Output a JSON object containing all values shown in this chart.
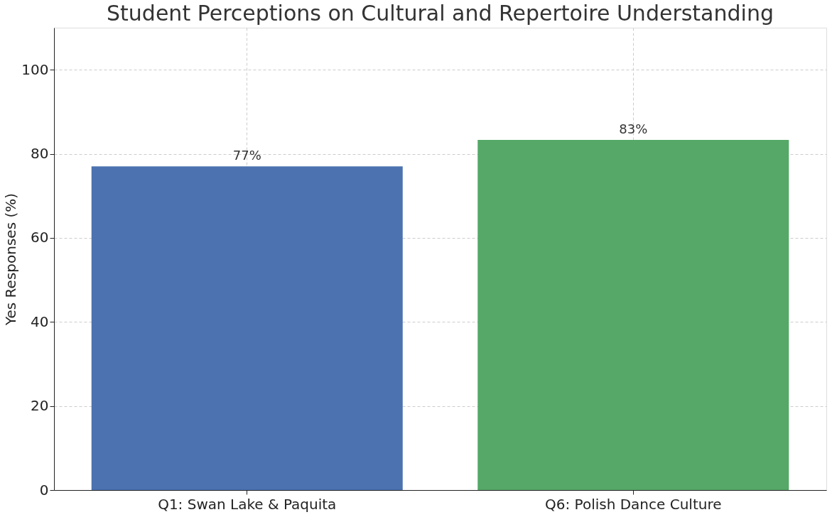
{
  "chart_data": {
    "type": "bar",
    "title": "Student Perceptions on Cultural and Repertoire Understanding",
    "ylabel": "Yes Responses (%)",
    "categories": [
      "Q1: Swan Lake & Paquita",
      "Q6: Polish Dance Culture"
    ],
    "values": [
      77,
      83.3
    ],
    "colors": [
      "#4c72b0",
      "#55a868"
    ],
    "value_labels": [
      "77%",
      "83%"
    ],
    "ylim": [
      0,
      110
    ],
    "yticks": [
      0,
      20,
      40,
      60,
      80,
      100
    ],
    "grid": true
  }
}
